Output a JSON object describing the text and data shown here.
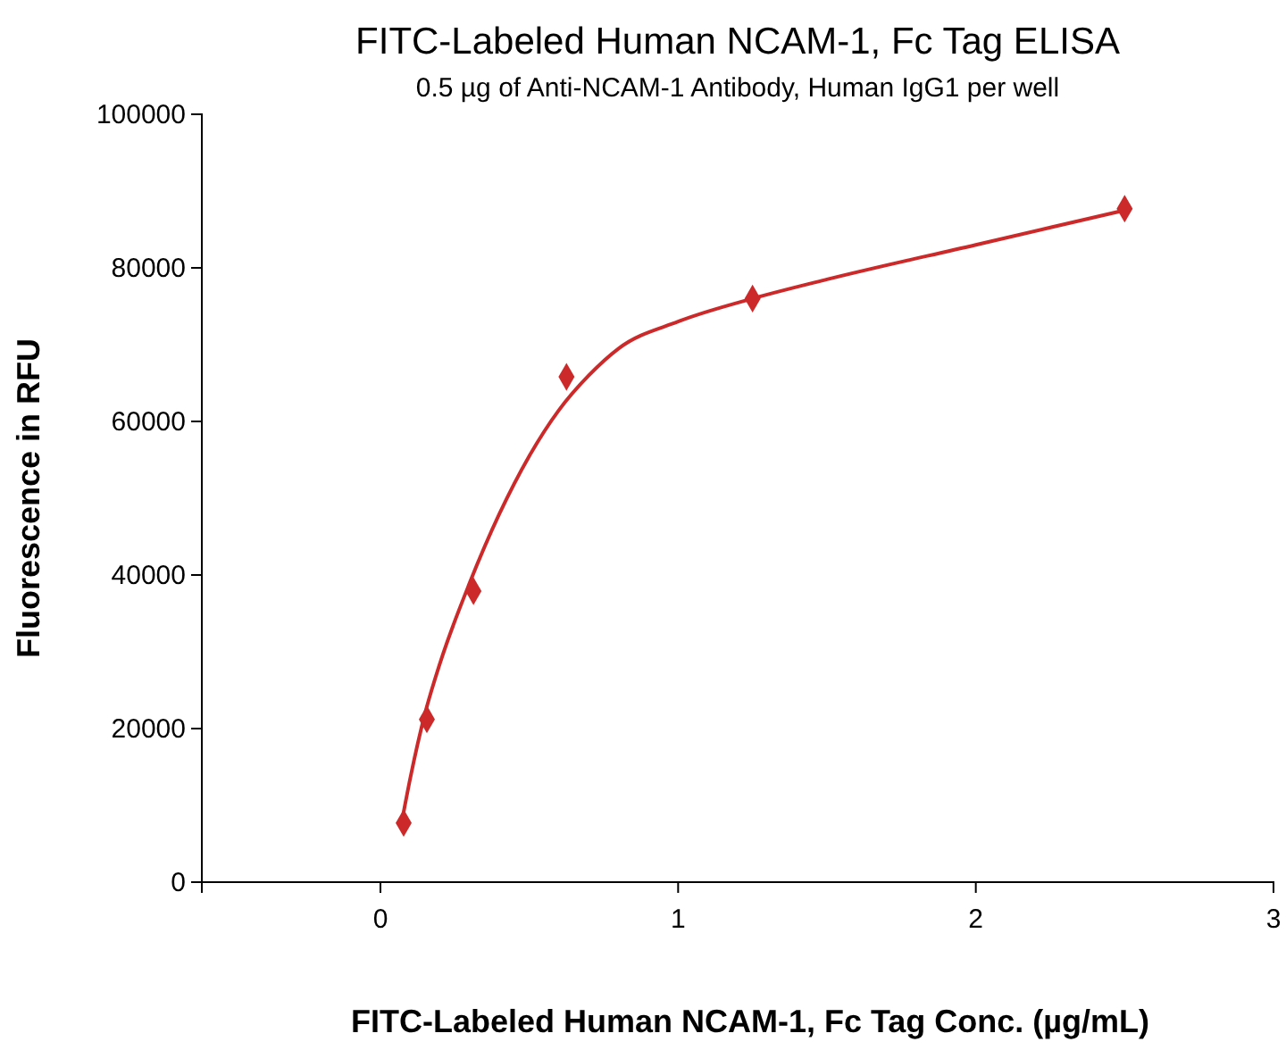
{
  "chart_data": {
    "type": "scatter",
    "title": "FITC-Labeled Human NCAM-1, Fc Tag ELISA",
    "subtitle": "0.5 µg of Anti-NCAM-1 Antibody, Human IgG1 per well",
    "xlabel": "FITC-Labeled Human NCAM-1, Fc Tag Conc. (µg/mL)",
    "ylabel": "Fluorescence in RFU",
    "xlim": [
      -0.6,
      3
    ],
    "xticks": [
      0,
      1,
      2,
      3
    ],
    "ylim": [
      0,
      100000
    ],
    "yticks": [
      0,
      20000,
      40000,
      60000,
      80000,
      100000
    ],
    "grid": false,
    "series": [
      {
        "type": "line",
        "color": "#cc2a2a",
        "x": [
          0.07,
          0.1,
          0.15,
          0.2,
          0.3,
          0.4,
          0.5,
          0.6,
          0.7,
          0.8,
          1.0,
          1.25,
          1.5,
          2.0,
          2.5
        ],
        "values": [
          7500,
          13500,
          22000,
          28500,
          39000,
          48000,
          55500,
          61500,
          66000,
          69500,
          73000,
          76000,
          78500,
          83000,
          87500
        ]
      },
      {
        "marker": "diamond",
        "color": "#cc2a2a",
        "x": [
          0.078,
          0.156,
          0.3125,
          0.625,
          1.25,
          2.5
        ],
        "values": [
          7700,
          21200,
          37900,
          65800,
          76000,
          87700
        ]
      }
    ]
  }
}
